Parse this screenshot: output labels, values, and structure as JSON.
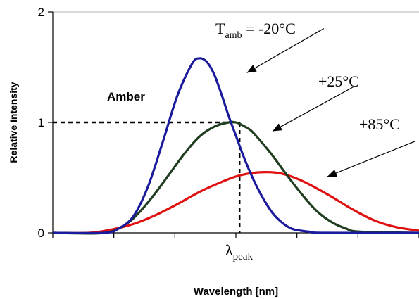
{
  "chart_data": {
    "type": "line",
    "title": "",
    "xlabel": "Wavelength [nm]",
    "ylabel": "Relative Intensity",
    "ylim": [
      0,
      2
    ],
    "xlim": [
      0,
      1
    ],
    "yticks": [
      "0",
      "1",
      "2"
    ],
    "grid": false,
    "legend": "none",
    "label_amber": "Amber",
    "peak_label": {
      "main": "λ",
      "sub": "peak"
    },
    "reference": {
      "x": 0.51,
      "y": 1.0
    },
    "series": [
      {
        "name_main": "T",
        "name_sub": "amb",
        "name_rest": " = -20°C",
        "color": "#1a1a9c",
        "x": [
          0.0,
          0.14,
          0.18,
          0.22,
          0.26,
          0.3,
          0.34,
          0.38,
          0.4,
          0.42,
          0.44,
          0.46,
          0.48,
          0.5,
          0.52,
          0.54,
          0.56,
          0.58,
          0.6,
          0.62,
          0.64,
          0.66,
          0.7,
          0.74,
          1.0
        ],
        "y": [
          0.0,
          0.0,
          0.04,
          0.15,
          0.42,
          0.82,
          1.24,
          1.53,
          1.58,
          1.55,
          1.44,
          1.26,
          1.06,
          0.88,
          0.7,
          0.54,
          0.4,
          0.28,
          0.18,
          0.11,
          0.06,
          0.03,
          0.01,
          0.0,
          0.0
        ]
      },
      {
        "name": "+25°C",
        "color": "#1f3d1f",
        "x": [
          0.0,
          0.14,
          0.2,
          0.24,
          0.28,
          0.32,
          0.36,
          0.4,
          0.44,
          0.48,
          0.5,
          0.52,
          0.54,
          0.56,
          0.6,
          0.64,
          0.68,
          0.72,
          0.76,
          0.8,
          0.84,
          1.0
        ],
        "y": [
          0.0,
          0.0,
          0.08,
          0.2,
          0.36,
          0.54,
          0.72,
          0.87,
          0.96,
          1.0,
          1.0,
          0.97,
          0.93,
          0.86,
          0.7,
          0.52,
          0.35,
          0.2,
          0.1,
          0.04,
          0.01,
          0.0
        ]
      },
      {
        "name": "+85°C",
        "color": "#e01010",
        "x": [
          0.0,
          0.1,
          0.16,
          0.22,
          0.28,
          0.34,
          0.4,
          0.46,
          0.5,
          0.54,
          0.58,
          0.62,
          0.66,
          0.7,
          0.76,
          0.82,
          0.88,
          0.94,
          1.0
        ],
        "y": [
          0.0,
          0.0,
          0.03,
          0.08,
          0.16,
          0.26,
          0.37,
          0.46,
          0.51,
          0.54,
          0.55,
          0.54,
          0.5,
          0.44,
          0.33,
          0.21,
          0.11,
          0.05,
          0.02
        ]
      }
    ],
    "annotations": [
      {
        "for": "series.0",
        "arrow_from": [
          0.74,
          1.85
        ],
        "arrow_to": [
          0.53,
          1.45
        ]
      },
      {
        "for": "series.1",
        "arrow_from": [
          0.82,
          1.32
        ],
        "arrow_to": [
          0.6,
          0.92
        ]
      },
      {
        "for": "series.2",
        "arrow_from": [
          0.99,
          0.83
        ],
        "arrow_to": [
          0.75,
          0.51
        ]
      }
    ]
  }
}
